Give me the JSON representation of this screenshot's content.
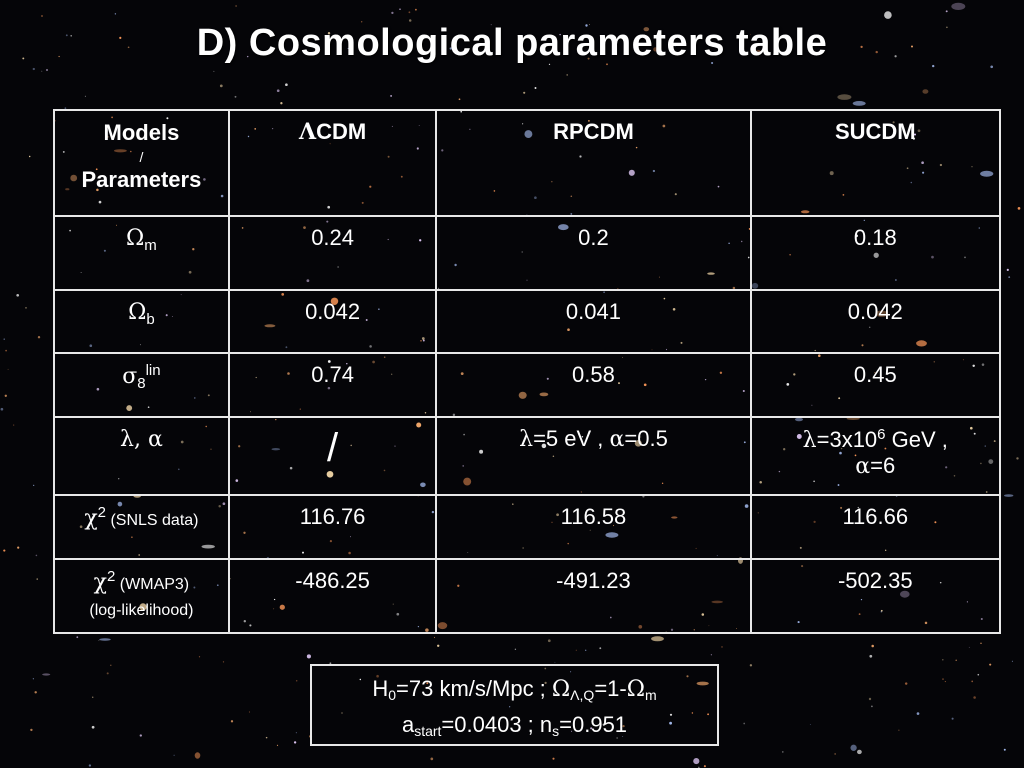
{
  "title": "D) Cosmological parameters table",
  "table": {
    "header": {
      "models_label": "Models",
      "slash": "/",
      "parameters_label": "Parameters",
      "col1_sym": "Λ",
      "col1_rest": "CDM",
      "col2": "RPCDM",
      "col3": "SUCDM"
    },
    "rows": [
      {
        "label_sym": "Ω",
        "label_sub": "m",
        "values": [
          "0.24",
          "0.2",
          "0.18"
        ]
      },
      {
        "label_sym": "Ω",
        "label_sub": "b",
        "values": [
          "0.042",
          "0.041",
          "0.042"
        ]
      },
      {
        "label_sym": "σ",
        "label_sub": "8",
        "label_sup": "lin",
        "values": [
          "0.74",
          "0.58",
          "0.45"
        ]
      },
      {
        "label": "λ, α",
        "col1": "/",
        "col2": {
          "lambda_sym": "λ",
          "lambda_val": "=5 eV , ",
          "alpha_sym": "α",
          "alpha_val": "=0.5"
        },
        "col3": {
          "lambda_sym": "λ",
          "lambda_val": "=3x10",
          "lambda_exp": "6",
          "lambda_unit": " GeV ,",
          "alpha_sym": "α",
          "alpha_val": "=6"
        }
      },
      {
        "label_sym": "χ",
        "label_sup": "2",
        "label_text": " (SNLS data)",
        "values": [
          "116.76",
          "116.58",
          "116.66"
        ]
      },
      {
        "label_sym": "χ",
        "label_sup": "2",
        "label_text": " (WMAP3)",
        "label_line2": "(log-likelihood)",
        "values": [
          "-486.25",
          "-491.23",
          "-502.35"
        ]
      }
    ]
  },
  "footnote": {
    "h0_letter": "H",
    "h0_sub": "0",
    "h0_value": "=73 km/s/Mpc ; ",
    "omega_sym": "Ω",
    "omega_sub": "Λ,Q",
    "omega_eq": "=1-",
    "omega_m_sym": "Ω",
    "omega_m_sub": "m",
    "a_letter": "a",
    "a_sub": "start",
    "a_value": "=0.0403 ",
    "ns_sep": " ; n",
    "ns_sub": "s",
    "ns_value": "=0.951"
  }
}
